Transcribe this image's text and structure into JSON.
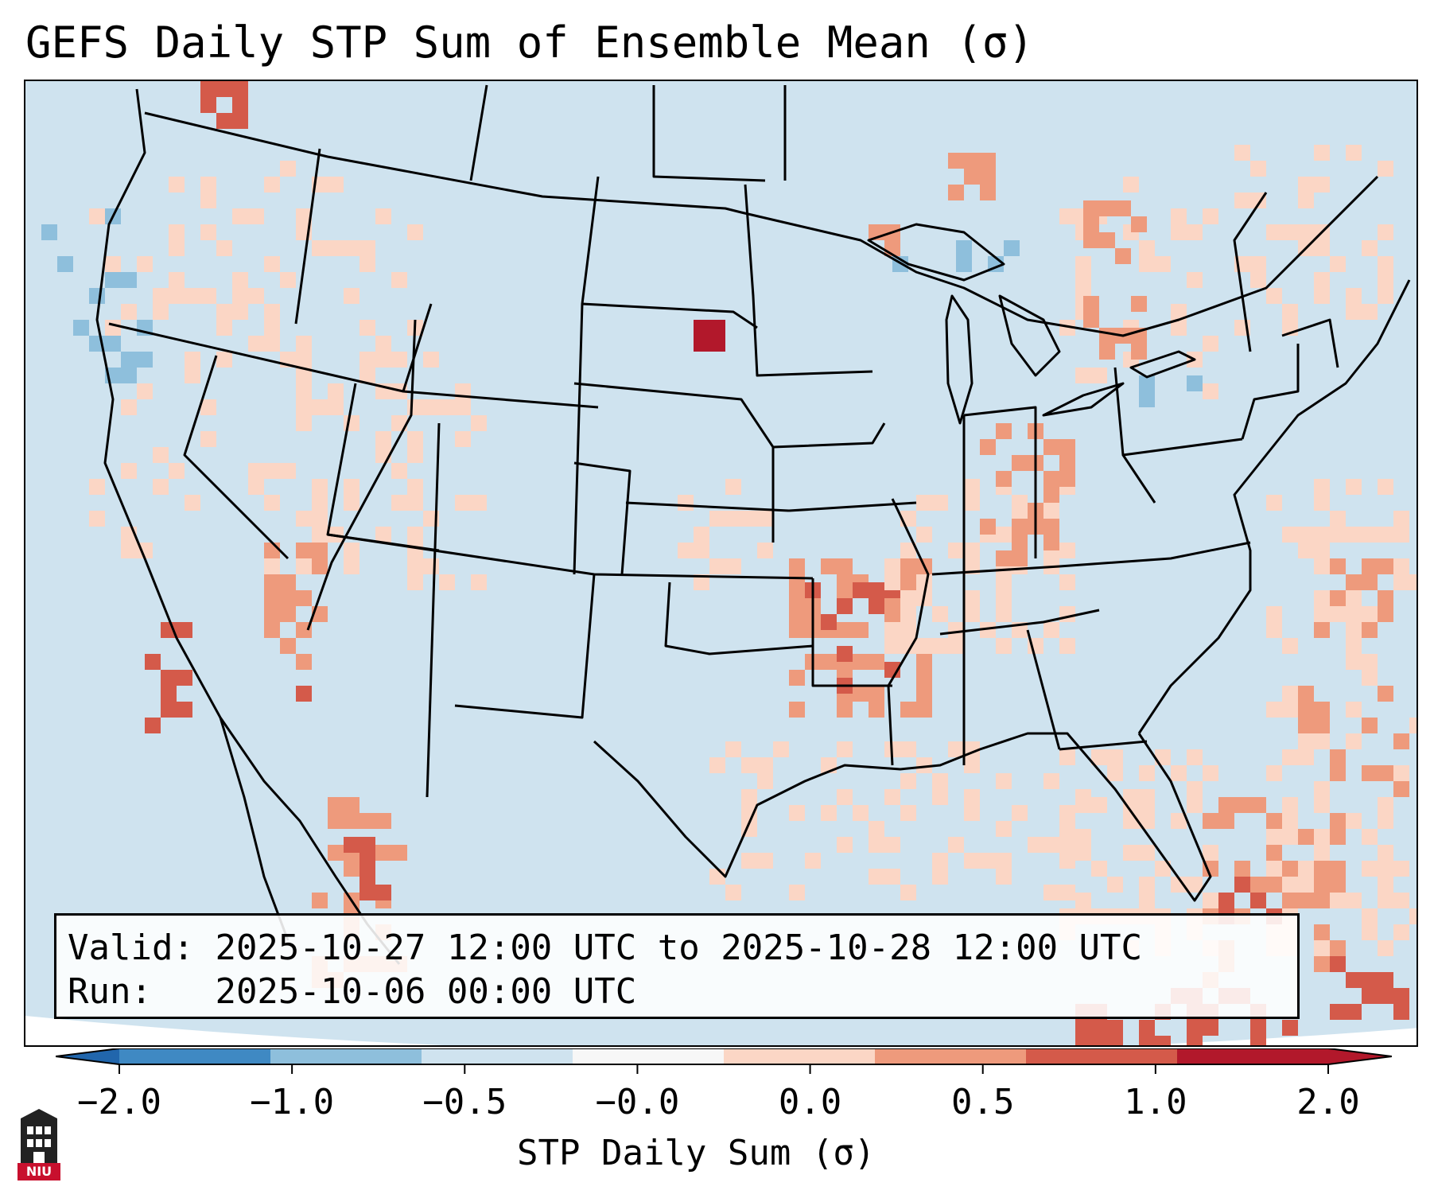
{
  "title": "GEFS Daily STP Sum of Ensemble Mean (σ)",
  "info": {
    "valid_label": "Valid:",
    "valid_value": "2025-10-27 12:00 UTC to 2025-10-28 12:00 UTC",
    "run_label": "Run:",
    "run_value": "2025-10-06 00:00 UTC"
  },
  "colorbar": {
    "label": "STP Daily Sum (σ)",
    "ticks": [
      "−2.0",
      "−1.0",
      "−0.5",
      "−0.0",
      "0.0",
      "0.5",
      "1.0",
      "2.0"
    ],
    "colors": [
      "#3f89c3",
      "#8ebfdc",
      "#cfe3ef",
      "#f7f7f7",
      "#fbd6c5",
      "#ee9a7c",
      "#d45a4a",
      "#b2182b"
    ],
    "extend_low_color": "#2166ac",
    "extend_high_color": "#b2182b"
  },
  "legend_colors": {
    "background_field": "#cfe3ef",
    "light_red": "#fbd6c5",
    "medium_red": "#ee9a7c",
    "dark_red": "#d45a4a",
    "deep_red": "#b2182b",
    "light_blue": "#8ebfdc"
  },
  "logo": {
    "text": "NIU",
    "icon": "university-tower-icon"
  }
}
